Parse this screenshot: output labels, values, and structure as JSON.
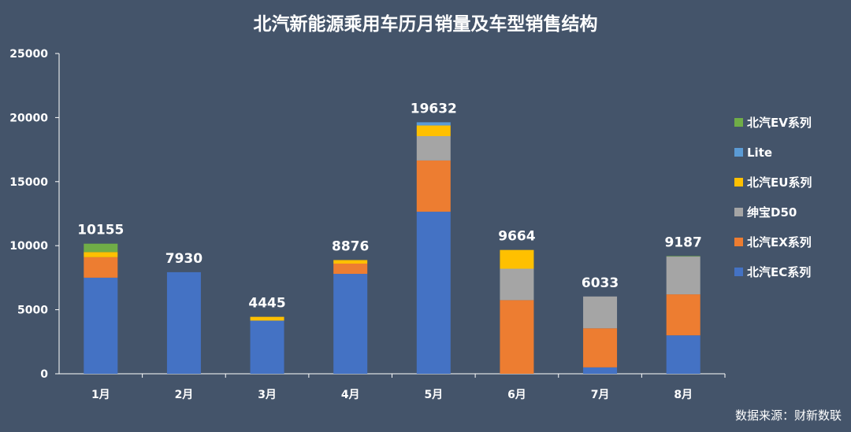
{
  "chart_data": {
    "type": "bar",
    "stacked": true,
    "title": "北汽新能源乘用车历月销量及车型销售结构",
    "categories": [
      "1月",
      "2月",
      "3月",
      "4月",
      "5月",
      "6月",
      "7月",
      "8月"
    ],
    "totals": [
      10155,
      7930,
      4445,
      8876,
      19632,
      9664,
      6033,
      9187
    ],
    "series": [
      {
        "name": "北汽EC系列",
        "color": "#4472c4",
        "values": [
          7500,
          7930,
          4150,
          7800,
          12650,
          0,
          500,
          3000
        ]
      },
      {
        "name": "北汽EX系列",
        "color": "#ed7d31",
        "values": [
          1600,
          0,
          0,
          800,
          4000,
          5750,
          3050,
          3200
        ]
      },
      {
        "name": "绅宝D50",
        "color": "#a5a5a5",
        "values": [
          0,
          0,
          0,
          0,
          1900,
          2450,
          2483,
          2950
        ]
      },
      {
        "name": "北汽EU系列",
        "color": "#ffc000",
        "values": [
          400,
          0,
          295,
          276,
          832,
          1464,
          0,
          0
        ]
      },
      {
        "name": "Lite",
        "color": "#5b9bd5",
        "values": [
          0,
          0,
          0,
          0,
          250,
          0,
          0,
          0
        ]
      },
      {
        "name": "北汽EV系列",
        "color": "#70ad47",
        "values": [
          655,
          0,
          0,
          0,
          0,
          0,
          0,
          37
        ]
      }
    ],
    "legend_order": [
      "北汽EV系列",
      "Lite",
      "北汽EU系列",
      "绅宝D50",
      "北汽EX系列",
      "北汽EC系列"
    ],
    "legend_position": "right",
    "ylim": [
      0,
      25000
    ],
    "yticks": [
      0,
      5000,
      10000,
      15000,
      20000,
      25000
    ],
    "grid": false,
    "xlabel": "",
    "ylabel": ""
  },
  "source_note": "数据来源：财新数联"
}
